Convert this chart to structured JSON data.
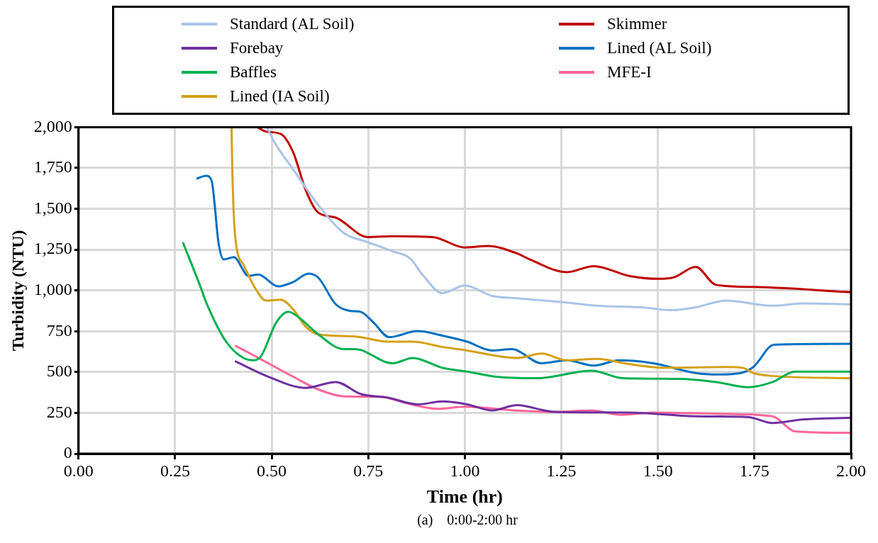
{
  "chart_data": {
    "type": "line",
    "xlabel": "Time (hr)",
    "ylabel": "Turbidity (NTU)",
    "annotations": [
      "(a)    0:00-2:00 hr"
    ],
    "xlim": [
      0,
      2
    ],
    "xticks": [
      {
        "value": 0,
        "label": "0.00"
      },
      {
        "value": 0.25,
        "label": "0.25"
      },
      {
        "value": 0.5,
        "label": "0.50"
      },
      {
        "value": 0.75,
        "label": "0.75"
      },
      {
        "value": 1,
        "label": "1.00"
      },
      {
        "value": 1.25,
        "label": "1.25"
      },
      {
        "value": 1.5,
        "label": "1.50"
      },
      {
        "value": 1.75,
        "label": "1.75"
      },
      {
        "value": 2,
        "label": "2.00"
      }
    ],
    "ylim": [
      0,
      2000
    ],
    "yticks": [
      {
        "value": 0,
        "label": "0"
      },
      {
        "value": 250,
        "label": "250"
      },
      {
        "value": 500,
        "label": "500"
      },
      {
        "value": 750,
        "label": "750"
      },
      {
        "value": 1000,
        "label": "1,000"
      },
      {
        "value": 1250,
        "label": "1,250"
      },
      {
        "value": 1500,
        "label": "1,500"
      },
      {
        "value": 1750,
        "label": "1,750"
      },
      {
        "value": 2000,
        "label": "2,000"
      }
    ],
    "grid": true,
    "legend": "top",
    "marker": "none",
    "line_style": "solid",
    "series": [
      {
        "name": "Standard (AL Soil)",
        "color": "#a9c4e8",
        "x": [
          0.488,
          0.504,
          0.556,
          0.62,
          0.685,
          0.749,
          0.813,
          0.859,
          0.89,
          0.942,
          1.0,
          1.071,
          1.135,
          1.25,
          1.341,
          1.457,
          1.535,
          1.598,
          1.676,
          1.797,
          1.875,
          2.0
        ],
        "values": [
          2000,
          1920,
          1740,
          1525,
          1355,
          1295,
          1240,
          1195,
          1098,
          984,
          1030,
          966,
          952,
          929,
          906,
          897,
          879,
          897,
          938,
          906,
          920,
          915
        ]
      },
      {
        "name": "Forebay",
        "color": "#7030a0",
        "x": [
          0.405,
          0.492,
          0.588,
          0.666,
          0.73,
          0.801,
          0.878,
          0.942,
          1.006,
          1.071,
          1.135,
          1.232,
          1.425,
          1.598,
          1.734,
          1.797,
          1.875,
          2.0
        ],
        "values": [
          567,
          471,
          403,
          439,
          366,
          343,
          302,
          320,
          302,
          265,
          297,
          256,
          252,
          229,
          224,
          188,
          210,
          220
        ]
      },
      {
        "name": "Baffles",
        "color": "#00b050",
        "x": [
          0.27,
          0.318,
          0.33,
          0.382,
          0.427,
          0.454,
          0.473,
          0.512,
          0.543,
          0.569,
          0.62,
          0.685,
          0.716,
          0.813,
          0.865,
          0.942,
          1.006,
          1.083,
          1.187,
          1.328,
          1.411,
          1.554,
          1.65,
          1.734,
          1.797,
          1.855,
          2.0
        ],
        "values": [
          1295,
          1007,
          929,
          686,
          586,
          572,
          600,
          805,
          870,
          837,
          732,
          641,
          641,
          554,
          586,
          526,
          503,
          471,
          462,
          508,
          462,
          458,
          439,
          407,
          439,
          503,
          503
        ]
      },
      {
        "name": "Lined (IA Soil)",
        "color": "#d4a017",
        "x": [
          0.396,
          0.398,
          0.405,
          0.427,
          0.459,
          0.485,
          0.523,
          0.556,
          0.588,
          0.62,
          0.716,
          0.801,
          0.865,
          0.942,
          1.006,
          1.135,
          1.199,
          1.264,
          1.342,
          1.425,
          1.521,
          1.682,
          1.72,
          1.747,
          1.797,
          2.0
        ],
        "values": [
          2000,
          1739,
          1341,
          1158,
          1007,
          938,
          943,
          883,
          778,
          732,
          718,
          686,
          686,
          654,
          632,
          586,
          613,
          572,
          581,
          549,
          526,
          531,
          526,
          494,
          476,
          462
        ]
      },
      {
        "name": "Skimmer",
        "color": "#c00000",
        "x": [
          0.463,
          0.485,
          0.523,
          0.556,
          0.588,
          0.62,
          0.666,
          0.749,
          0.813,
          0.917,
          1.0,
          1.06,
          1.135,
          1.168,
          1.264,
          1.334,
          1.425,
          1.502,
          1.541,
          1.598,
          1.65,
          1.747,
          2.0
        ],
        "values": [
          2000,
          1973,
          1959,
          1844,
          1615,
          1478,
          1446,
          1327,
          1332,
          1327,
          1263,
          1272,
          1227,
          1190,
          1112,
          1149,
          1089,
          1071,
          1080,
          1144,
          1034,
          1021,
          989
        ]
      },
      {
        "name": "Lined (AL Soil)",
        "color": "#0070c0",
        "x": [
          0.305,
          0.33,
          0.344,
          0.363,
          0.376,
          0.402,
          0.44,
          0.465,
          0.517,
          0.556,
          0.595,
          0.62,
          0.666,
          0.705,
          0.73,
          0.763,
          0.804,
          0.878,
          0.942,
          1.006,
          1.071,
          1.122,
          1.199,
          1.264,
          1.334,
          1.4,
          1.488,
          1.598,
          1.656,
          1.714,
          1.747,
          1.801,
          2.0
        ],
        "values": [
          1684,
          1702,
          1675,
          1281,
          1190,
          1204,
          1089,
          1098,
          1025,
          1052,
          1103,
          1080,
          915,
          874,
          869,
          805,
          714,
          751,
          723,
          686,
          632,
          640,
          554,
          572,
          540,
          572,
          554,
          494,
          485,
          494,
          531,
          668,
          673
        ]
      },
      {
        "name": "MFE-I",
        "color": "#ff6699",
        "x": [
          0.405,
          0.459,
          0.556,
          0.62,
          0.685,
          0.782,
          0.846,
          0.929,
          1.0,
          1.129,
          1.232,
          1.328,
          1.405,
          1.488,
          1.682,
          1.797,
          1.855,
          2.0
        ],
        "values": [
          663,
          595,
          471,
          394,
          352,
          348,
          311,
          275,
          288,
          265,
          256,
          265,
          238,
          252,
          243,
          229,
          137,
          128
        ]
      }
    ]
  }
}
